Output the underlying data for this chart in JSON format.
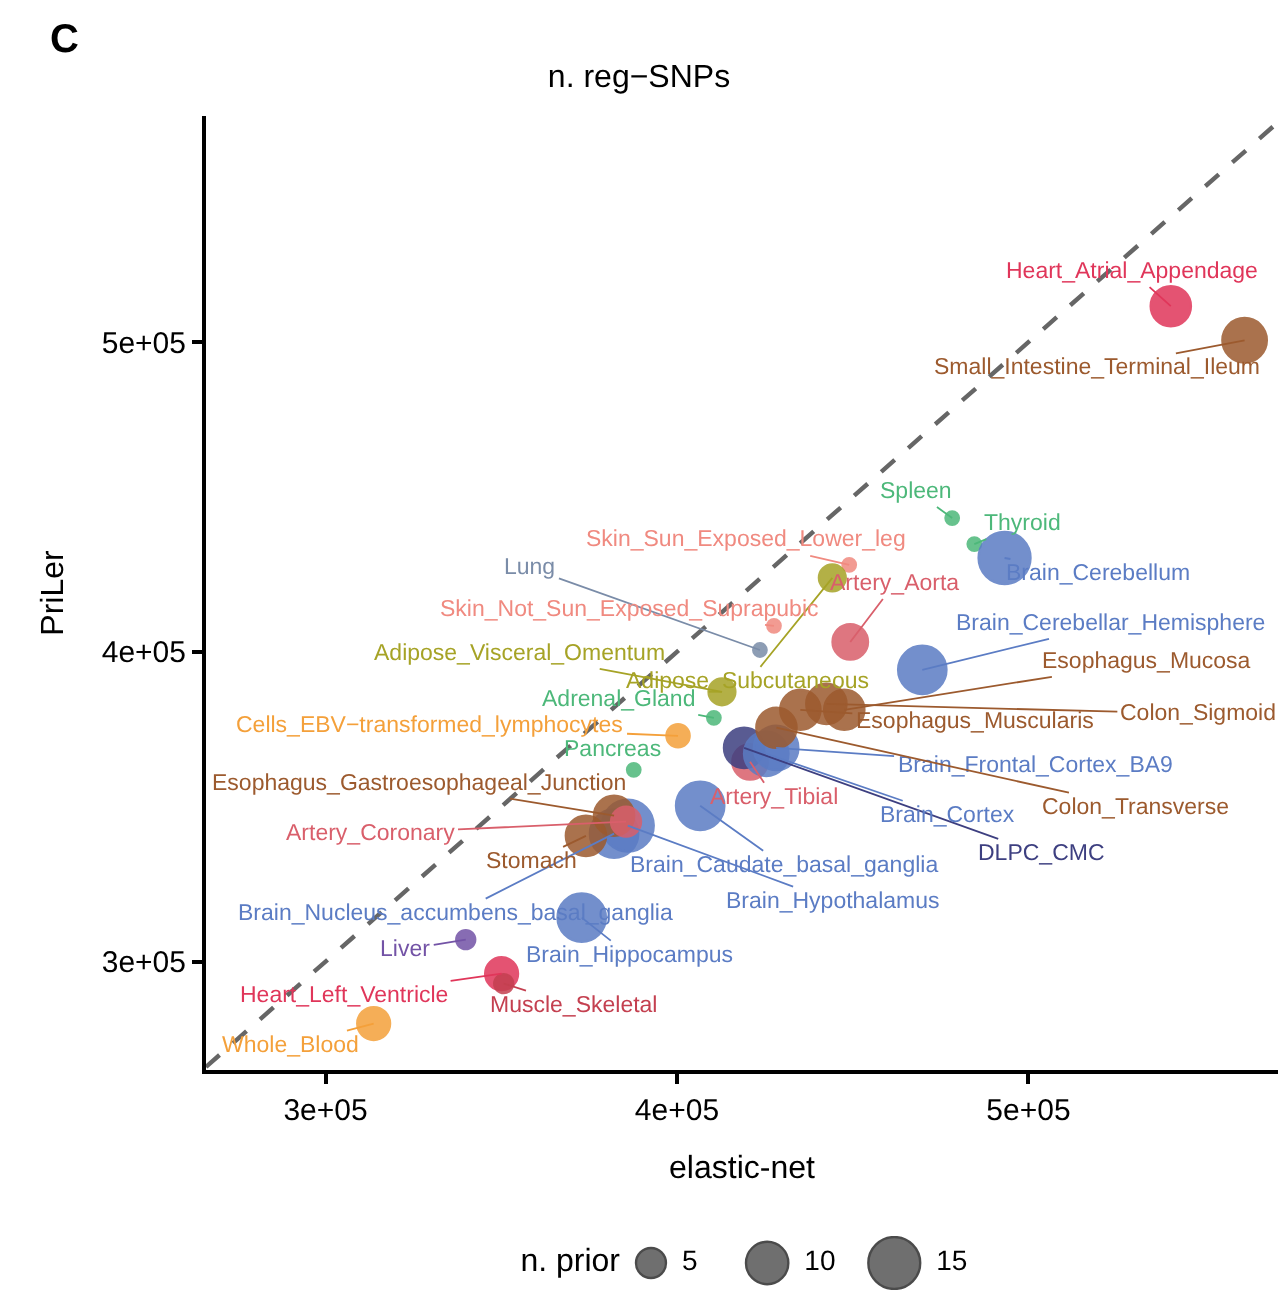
{
  "chart_data": {
    "type": "bubble",
    "title": "n. reg−SNPs",
    "xlabel": "elastic-net",
    "ylabel": "PriLer",
    "legend_title": "n. prior",
    "annotations": [
      "C"
    ],
    "xlim": [
      266000,
      571000
    ],
    "ylim": [
      265000,
      573000
    ],
    "xticks": [
      {
        "value": 300000,
        "label": "3e+05"
      },
      {
        "value": 400000,
        "label": "4e+05"
      },
      {
        "value": 500000,
        "label": "5e+05"
      }
    ],
    "yticks": [
      {
        "value": 300000,
        "label": "3e+05"
      },
      {
        "value": 400000,
        "label": "4e+05"
      },
      {
        "value": 500000,
        "label": "5e+05"
      }
    ],
    "size_legend": [
      5,
      10,
      15
    ],
    "grid": false,
    "legend": "bottom",
    "marker": "circle",
    "series": [
      {
        "name": "Heart_Atrial_Appendage",
        "color": "#e0365a",
        "x": [
          540500
        ],
        "values": [
          511600
        ],
        "sizes": [
          9
        ]
      },
      {
        "name": "Small_Intestine_Terminal_Ileum",
        "color": "#9c5a2e",
        "x": [
          561500
        ],
        "values": [
          500600
        ],
        "sizes": [
          11
        ]
      },
      {
        "name": "Spleen",
        "color": "#4db87a",
        "x": [
          478300
        ],
        "values": [
          443200
        ],
        "sizes": [
          1
        ]
      },
      {
        "name": "Thyroid",
        "color": "#4db87a",
        "x": [
          484600
        ],
        "values": [
          434800
        ],
        "sizes": [
          1
        ]
      },
      {
        "name": "Brain_Cerebellum",
        "color": "#5b7cc4",
        "x": [
          493200
        ],
        "values": [
          430300
        ],
        "sizes": [
          15
        ]
      },
      {
        "name": "Skin_Sun_Exposed_Lower_leg",
        "color": "#f08a80",
        "x": [
          449000
        ],
        "values": [
          428100
        ],
        "sizes": [
          1
        ]
      },
      {
        "name": "Adipose_Subcutaneous",
        "color": "#a6a326",
        "x": [
          444200
        ],
        "values": [
          423900
        ],
        "sizes": [
          4
        ]
      },
      {
        "name": "Adipose_Visceral_Omentum",
        "color": "#a6a326",
        "x": [
          412800
        ],
        "values": [
          387100
        ],
        "sizes": [
          4
        ]
      },
      {
        "name": "Lung",
        "color": "#7a8ca8",
        "x": [
          423600
        ],
        "values": [
          400600
        ],
        "sizes": [
          1
        ]
      },
      {
        "name": "Skin_Not_Sun_Exposed_Suprapubic",
        "color": "#f08a80",
        "x": [
          427600
        ],
        "values": [
          408400
        ],
        "sizes": [
          1
        ]
      },
      {
        "name": "Artery_Aorta",
        "color": "#d95f6b",
        "x": [
          449300
        ],
        "values": [
          403200
        ],
        "sizes": [
          7
        ]
      },
      {
        "name": "Brain_Cerebellar_Hemisphere",
        "color": "#5b7cc4",
        "x": [
          469800
        ],
        "values": [
          394200
        ],
        "sizes": [
          13
        ]
      },
      {
        "name": "Adrenal_Gland",
        "color": "#4db87a",
        "x": [
          410500
        ],
        "values": [
          378700
        ],
        "sizes": [
          1
        ]
      },
      {
        "name": "Esophagus_Mucosa",
        "color": "#9c5a2e",
        "x": [
          447600
        ],
        "values": [
          381300
        ],
        "sizes": [
          9
        ]
      },
      {
        "name": "Colon_Sigmoid",
        "color": "#9c5a2e",
        "x": [
          442500
        ],
        "values": [
          383200
        ],
        "sizes": [
          9
        ]
      },
      {
        "name": "Esophagus_Muscularis",
        "color": "#9c5a2e",
        "x": [
          435100
        ],
        "values": [
          381300
        ],
        "sizes": [
          9
        ]
      },
      {
        "name": "Artery_Tibial",
        "color": "#d95f6b",
        "x": [
          420800
        ],
        "values": [
          364500
        ],
        "sizes": [
          7
        ]
      },
      {
        "name": "DLPC_CMC",
        "color": "#3d3f80",
        "x": [
          419100
        ],
        "values": [
          369000
        ],
        "sizes": [
          9
        ]
      },
      {
        "name": "Brain_Cortex",
        "color": "#5b7cc4",
        "x": [
          425400
        ],
        "values": [
          367100
        ],
        "sizes": [
          11
        ]
      },
      {
        "name": "Brain_Frontal_Cortex_BA9",
        "color": "#5b7cc4",
        "x": [
          428200
        ],
        "values": [
          369000
        ],
        "sizes": [
          11
        ]
      },
      {
        "name": "Colon_Transverse",
        "color": "#9c5a2e",
        "x": [
          428300
        ],
        "values": [
          375500
        ],
        "sizes": [
          9
        ]
      },
      {
        "name": "Cells_EBV−transformed_lymphocytes",
        "color": "#f4a03a",
        "x": [
          400300
        ],
        "values": [
          372900
        ],
        "sizes": [
          3
        ]
      },
      {
        "name": "Pancreas",
        "color": "#4db87a",
        "x": [
          387700
        ],
        "values": [
          361900
        ],
        "sizes": [
          1
        ]
      },
      {
        "name": "Brain_Caudate_basal_ganglia",
        "color": "#5b7cc4",
        "x": [
          406600
        ],
        "values": [
          350300
        ],
        "sizes": [
          13
        ]
      },
      {
        "name": "Brain_Nucleus_accumbens_basal_ganglia",
        "color": "#5b7cc4",
        "x": [
          382100
        ],
        "values": [
          341300
        ],
        "sizes": [
          13
        ]
      },
      {
        "name": "Brain_Hypothalamus",
        "color": "#5b7cc4",
        "x": [
          386000
        ],
        "values": [
          343900
        ],
        "sizes": [
          15
        ]
      },
      {
        "name": "Stomach",
        "color": "#9c5a2e",
        "x": [
          374100
        ],
        "values": [
          340600
        ],
        "sizes": [
          9
        ]
      },
      {
        "name": "Esophagus_Gastroesophageal_Junction",
        "color": "#9c5a2e",
        "x": [
          382100
        ],
        "values": [
          347100
        ],
        "sizes": [
          9
        ]
      },
      {
        "name": "Artery_Coronary",
        "color": "#d95f6b",
        "x": [
          385500
        ],
        "values": [
          345200
        ],
        "sizes": [
          5
        ]
      },
      {
        "name": "Brain_Hippocampus",
        "color": "#5b7cc4",
        "x": [
          372900
        ],
        "values": [
          314200
        ],
        "sizes": [
          13
        ]
      },
      {
        "name": "Liver",
        "color": "#7353a6",
        "x": [
          339900
        ],
        "values": [
          307100
        ],
        "sizes": [
          2
        ]
      },
      {
        "name": "Heart_Left_Ventricle",
        "color": "#e0365a",
        "x": [
          350100
        ],
        "values": [
          296100
        ],
        "sizes": [
          6
        ]
      },
      {
        "name": "Muscle_Skeletal",
        "color": "#c44050",
        "x": [
          350700
        ],
        "values": [
          292900
        ],
        "sizes": [
          2
        ]
      },
      {
        "name": "Whole_Blood",
        "color": "#f4a03a",
        "x": [
          313700
        ],
        "values": [
          280000
        ],
        "sizes": [
          6
        ]
      },
      {
        "type": "line",
        "color": "#666666",
        "line_style": "dashed",
        "marker": "none",
        "x": [
          266000,
          571000
        ],
        "values": [
          266000,
          571000
        ]
      }
    ]
  }
}
